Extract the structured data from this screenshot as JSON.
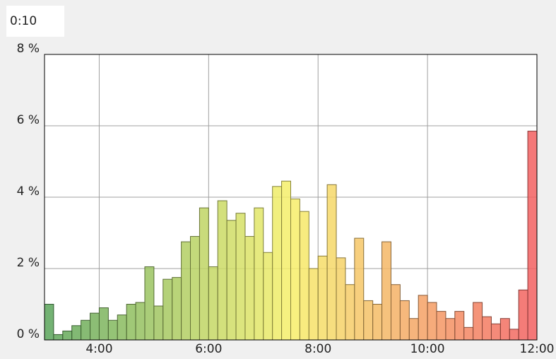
{
  "chart_data": {
    "type": "histogram",
    "bin_width_label": "0:10",
    "bins": [
      180,
      190,
      200,
      210,
      220,
      230,
      240,
      250,
      260,
      270,
      280,
      290,
      300,
      310,
      320,
      330,
      340,
      350,
      360,
      370,
      380,
      390,
      400,
      410,
      420,
      430,
      440,
      450,
      460,
      470,
      480,
      490,
      500,
      510,
      520,
      530,
      540,
      550,
      560,
      570,
      580,
      590,
      600,
      610,
      620,
      630,
      640,
      650,
      660,
      670,
      680,
      690,
      700,
      710,
      720
    ],
    "values": [
      1.0,
      0.15,
      0.25,
      0.4,
      0.55,
      0.75,
      0.9,
      0.55,
      0.7,
      1.0,
      1.05,
      2.05,
      0.95,
      1.7,
      1.75,
      2.75,
      2.9,
      3.7,
      2.05,
      3.9,
      3.35,
      3.55,
      2.9,
      3.7,
      2.45,
      4.3,
      4.45,
      3.95,
      3.6,
      2.0,
      2.35,
      4.35,
      2.3,
      1.55,
      2.85,
      1.1,
      1.0,
      2.75,
      1.55,
      1.1,
      0.6,
      1.25,
      1.05,
      0.8,
      0.6,
      0.8,
      0.35,
      1.05,
      0.65,
      0.45,
      0.6,
      0.3,
      1.4,
      5.85
    ],
    "color_stops": [
      "#5aa45a",
      "#f7f06a",
      "#f26060"
    ],
    "xlim": [
      180,
      720
    ],
    "xticks": [
      {
        "value": 240,
        "label": "4:00"
      },
      {
        "value": 360,
        "label": "6:00"
      },
      {
        "value": 480,
        "label": "8:00"
      },
      {
        "value": 600,
        "label": "10:00"
      },
      {
        "value": 720,
        "label": "12:00"
      }
    ],
    "ylim": [
      0,
      8
    ],
    "yticks": [
      {
        "value": 0,
        "label": "0 %"
      },
      {
        "value": 2,
        "label": "2 %"
      },
      {
        "value": 4,
        "label": "4 %"
      },
      {
        "value": 6,
        "label": "6 %"
      },
      {
        "value": 8,
        "label": "8 %"
      }
    ],
    "grid": true
  }
}
